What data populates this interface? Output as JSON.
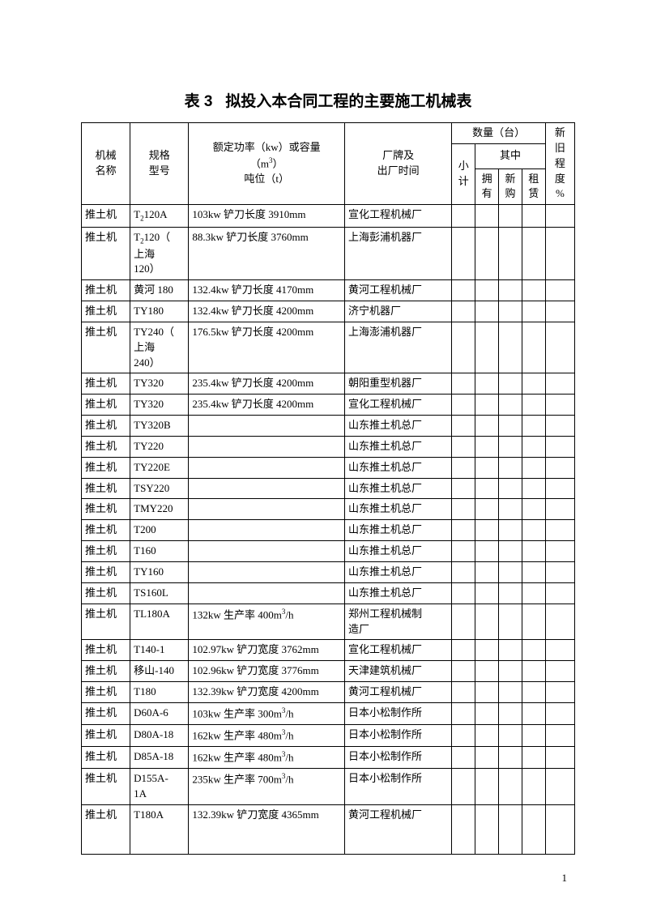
{
  "title_prefix": "表 3",
  "title": "拟投入本合同工程的主要施工机械表",
  "headers": {
    "name": "机械\n名称",
    "model": "规格\n型号",
    "power_l1": "额定功率（kw）或容量",
    "power_l2": "（m",
    "power_l2_sup": "3",
    "power_l2_close": "）",
    "power_l3": "吨位（t）",
    "mfg": "厂牌及\n出厂时间",
    "qty_group": "数量（台）",
    "subtotal": "小\n计",
    "of_which": "其中",
    "own": "拥\n有",
    "buy": "新\n购",
    "rent": "租\n赁",
    "condition": "新\n旧\n程\n度\n%"
  },
  "rows": [
    {
      "name": "推土机",
      "model": "T{sub2}120A",
      "power": "103kw 铲刀长度 3910mm",
      "mfg": "宣化工程机械厂"
    },
    {
      "name": "推土机",
      "model": "T{sub2}120（\n上海\n120）",
      "power": "88.3kw 铲刀长度 3760mm",
      "mfg": "上海彭浦机器厂"
    },
    {
      "name": "推土机",
      "model": "黄河 180",
      "power": "132.4kw 铲刀长度 4170mm",
      "mfg": "黄河工程机械厂"
    },
    {
      "name": "推土机",
      "model": "TY180",
      "power": "132.4kw 铲刀长度 4200mm",
      "mfg": "济宁机器厂"
    },
    {
      "name": "推土机",
      "model": "TY240（\n上海\n240）",
      "power": "176.5kw 铲刀长度 4200mm",
      "mfg": "上海澎浦机器厂"
    },
    {
      "name": "推土机",
      "model": "TY320",
      "power": "235.4kw 铲刀长度 4200mm",
      "mfg": "朝阳重型机器厂"
    },
    {
      "name": "推土机",
      "model": "TY320",
      "power": "235.4kw 铲刀长度 4200mm",
      "mfg": "宣化工程机械厂"
    },
    {
      "name": "推土机",
      "model": "TY320B",
      "power": "",
      "mfg": "山东推土机总厂"
    },
    {
      "name": "推土机",
      "model": "TY220",
      "power": "",
      "mfg": "山东推土机总厂"
    },
    {
      "name": "推土机",
      "model": "TY220E",
      "power": "",
      "mfg": "山东推土机总厂"
    },
    {
      "name": "推土机",
      "model": "TSY220",
      "power": "",
      "mfg": "山东推土机总厂"
    },
    {
      "name": "推土机",
      "model": "TMY220",
      "power": "",
      "mfg": "山东推土机总厂"
    },
    {
      "name": "推土机",
      "model": "T200",
      "power": "",
      "mfg": "山东推土机总厂"
    },
    {
      "name": "推土机",
      "model": "T160",
      "power": "",
      "mfg": "山东推土机总厂"
    },
    {
      "name": "推土机",
      "model": "TY160",
      "power": "",
      "mfg": "山东推土机总厂"
    },
    {
      "name": "推土机",
      "model": "TS160L",
      "power": "",
      "mfg": "山东推土机总厂"
    },
    {
      "name": "推土机",
      "model": "TL180A",
      "power": "132kw 生产率 400m{sup3}/h",
      "mfg": "郑州工程机械制\n造厂"
    },
    {
      "name": "推土机",
      "model": "T140-1",
      "power": "102.97kw 铲刀宽度 3762mm",
      "mfg": "宣化工程机械厂"
    },
    {
      "name": "推土机",
      "model": "移山-140",
      "power": "102.96kw 铲刀宽度 3776mm",
      "mfg": "天津建筑机械厂"
    },
    {
      "name": "推土机",
      "model": "T180",
      "power": "132.39kw 铲刀宽度 4200mm",
      "mfg": "黄河工程机械厂"
    },
    {
      "name": "推土机",
      "model": "D60A-6",
      "power": "103kw 生产率 300m{sup3}/h",
      "mfg": "日本小松制作所"
    },
    {
      "name": "推土机",
      "model": "D80A-18",
      "power": "162kw 生产率 480m{sup3}/h",
      "mfg": "日本小松制作所"
    },
    {
      "name": "推土机",
      "model": "D85A-18",
      "power": "162kw 生产率 480m{sup3}/h",
      "mfg": "日本小松制作所"
    },
    {
      "name": "推土机",
      "model": "D155A-\n1A",
      "power": "235kw 生产率 700m{sup3}/h",
      "mfg": "日本小松制作所"
    },
    {
      "name": "推土机",
      "model": "T180A",
      "power": "132.39kw 铲刀宽度 4365mm",
      "mfg": "黄河工程机械厂",
      "tall": true
    }
  ],
  "page_number": "1"
}
